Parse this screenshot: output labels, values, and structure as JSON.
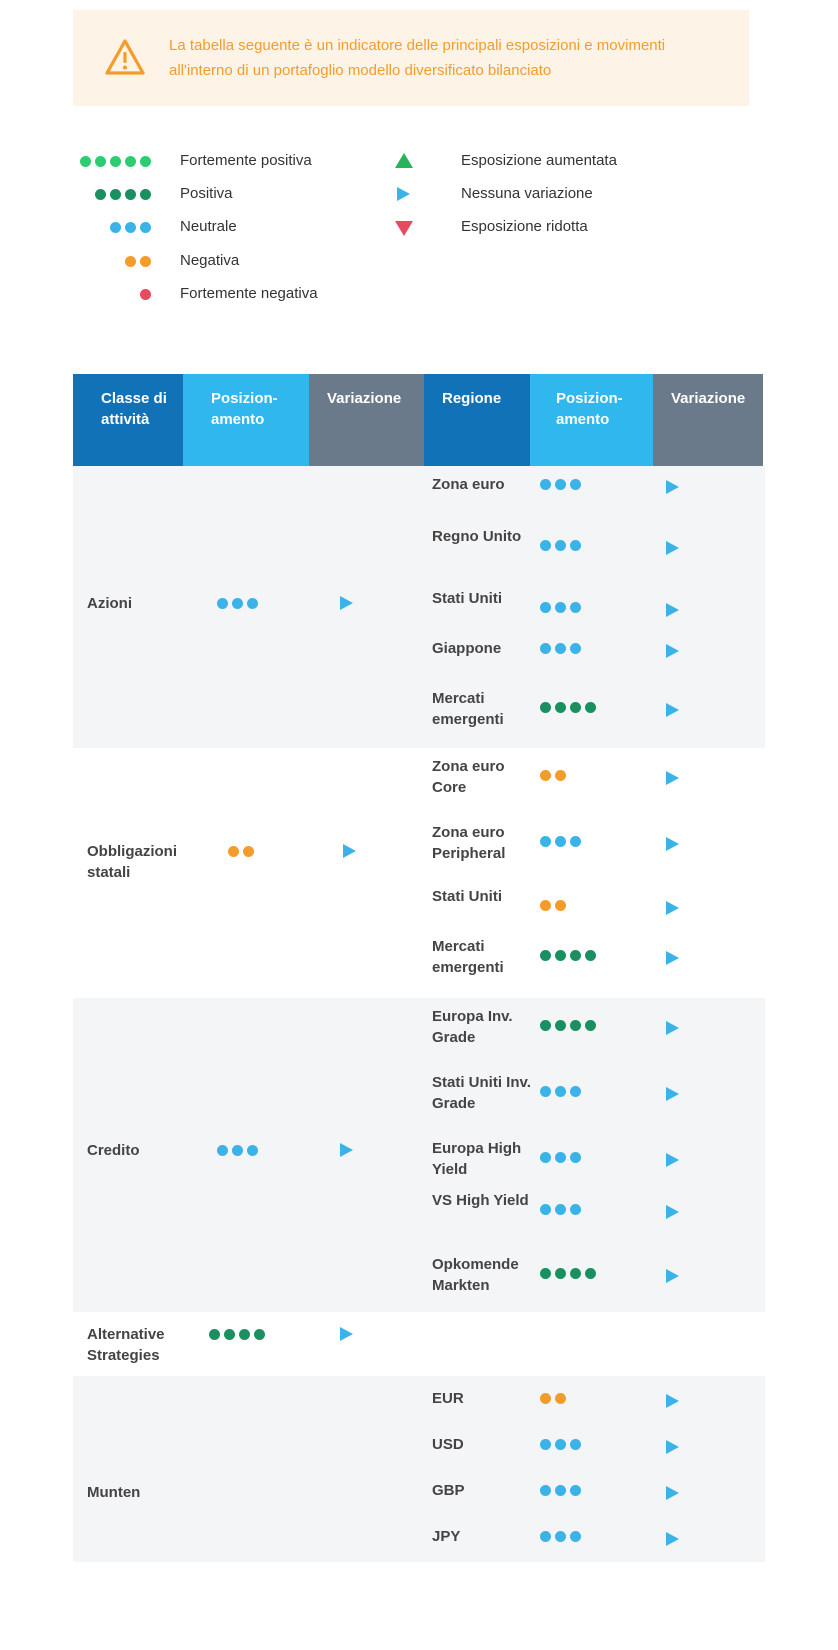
{
  "notice": {
    "line1": "La tabella seguente è un indicatore delle principali esposizioni e movimenti",
    "line2": "all'interno di un portafoglio modello diversificato bilanciato"
  },
  "legend": {
    "strong_positive": "Fortemente positiva",
    "positive": "Positiva",
    "neutral": "Neutrale",
    "negative": "Negativa",
    "strong_negative": "Fortemente negativa",
    "increased": "Esposizione aumentata",
    "no_change": "Nessuna variazione",
    "reduced": "Esposizione ridotta"
  },
  "headers": {
    "asset_class": "Classe di attività",
    "positioning": "Posizion-amento",
    "variation": "Variazione",
    "region": "Regione",
    "positioning2": "Posizion-amento",
    "variation2": "Variazione"
  },
  "groups": [
    {
      "label": "Azioni",
      "rating": "neutral",
      "change": "no_change",
      "rows": [
        {
          "label": "Zona euro",
          "rating": "neutral",
          "change": "no_change"
        },
        {
          "label": "Regno Unito",
          "rating": "neutral",
          "change": "no_change"
        },
        {
          "label": "Stati Uniti",
          "rating": "neutral",
          "change": "no_change"
        },
        {
          "label": "Giappone",
          "rating": "neutral",
          "change": "no_change"
        },
        {
          "label": "Mercati emergenti",
          "rating": "positive",
          "change": "no_change"
        }
      ]
    },
    {
      "label": "Obbligazioni statali",
      "rating": "negative",
      "change": "no_change",
      "rows": [
        {
          "label": "Zona euro Core",
          "rating": "negative",
          "change": "no_change"
        },
        {
          "label": "Zona euro Peripheral",
          "rating": "neutral",
          "change": "no_change"
        },
        {
          "label": "Stati Uniti",
          "rating": "negative",
          "change": "no_change"
        },
        {
          "label": "Mercati emergenti",
          "rating": "positive",
          "change": "no_change"
        }
      ]
    },
    {
      "label": "Credito",
      "rating": "neutral",
      "change": "no_change",
      "rows": [
        {
          "label": "Europa Inv. Grade",
          "rating": "positive",
          "change": "no_change"
        },
        {
          "label": "Stati Uniti Inv. Grade",
          "rating": "neutral",
          "change": "no_change"
        },
        {
          "label": "Europa High Yield",
          "rating": "neutral",
          "change": "no_change"
        },
        {
          "label": "VS High Yield",
          "rating": "neutral",
          "change": "no_change"
        },
        {
          "label": "Opkomende Markten",
          "rating": "positive",
          "change": "no_change"
        }
      ]
    },
    {
      "label": "Alternative Strategies",
      "rating": "positive",
      "change": "no_change",
      "rows": []
    },
    {
      "label": "Munten",
      "rating": "",
      "change": "",
      "rows": [
        {
          "label": "EUR",
          "rating": "negative",
          "change": "no_change"
        },
        {
          "label": "USD",
          "rating": "neutral",
          "change": "no_change"
        },
        {
          "label": "GBP",
          "rating": "neutral",
          "change": "no_change"
        },
        {
          "label": "JPY",
          "rating": "neutral",
          "change": "no_change"
        }
      ]
    }
  ],
  "colors": {
    "strong_positive": "#2ecc71",
    "positive": "#1a9060",
    "neutral": "#3bb3e8",
    "negative": "#f39c2c",
    "strong_negative": "#e84a5f",
    "header_blue": "#1272b8",
    "header_light_blue": "#2fb7ee",
    "header_gray": "#6b7a8a",
    "notice_bg": "#fdf3e6",
    "notice_text": "#f39c2c"
  },
  "icons": {
    "notice": "warning-icon",
    "increased": "triangle-up-icon",
    "no_change": "triangle-right-icon",
    "reduced": "triangle-down-icon"
  }
}
